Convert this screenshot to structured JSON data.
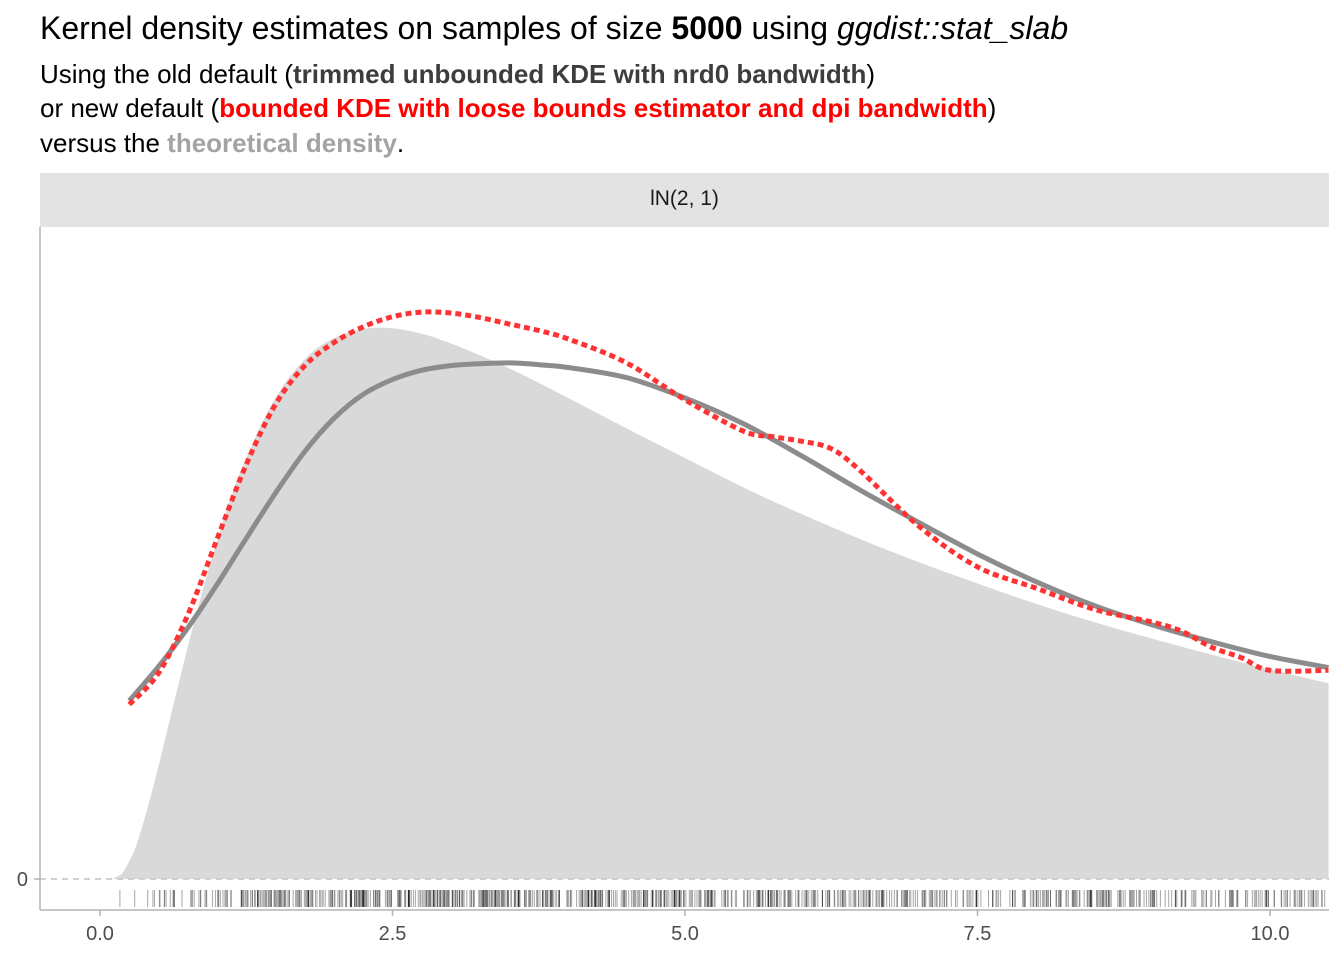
{
  "header": {
    "title_pre": "Kernel density estimates on samples of size ",
    "title_n": "5000",
    "title_mid": " using ",
    "title_fn": "ggdist::stat_slab",
    "sub1_pre": "Using the old default (",
    "sub1_hl": "trimmed unbounded KDE with nrd0 bandwidth",
    "sub1_post": ")",
    "sub2_pre": "or new default (",
    "sub2_hl": "bounded KDE with loose bounds estimator and dpi bandwidth",
    "sub2_post": ")",
    "sub3_pre": "versus the ",
    "sub3_hl": "theoretical density",
    "sub3_post": "."
  },
  "chart_data": {
    "type": "area",
    "facet_label": "lN(2, 1)",
    "xlim": [
      -0.25,
      10.5
    ],
    "ylim": [
      -0.0036,
      0.0745
    ],
    "x_ticks": [
      0.0,
      2.5,
      5.0,
      7.5,
      10.0
    ],
    "x_tick_labels": [
      "0.0",
      "2.5",
      "5.0",
      "7.5",
      "10.0"
    ],
    "y_ticks": [
      0
    ],
    "y_tick_labels": [
      "0"
    ],
    "grid": false,
    "colors": {
      "theoretical": "#d9d9d9",
      "old_default": "#8c8c8c",
      "new_default": "#ff3333",
      "strip": "#e3e3e3",
      "rug": "#000000"
    },
    "series": [
      {
        "key": "theoretical",
        "style": "filled-area",
        "x": [
          0.05,
          0.1,
          0.15,
          0.2,
          0.3,
          0.4,
          0.5,
          0.6,
          0.8,
          1.0,
          1.2,
          1.5,
          1.8,
          2.1,
          2.4,
          2.7,
          3.0,
          3.5,
          4.0,
          4.5,
          5.0,
          5.5,
          6.0,
          6.5,
          7.0,
          7.5,
          8.0,
          8.5,
          9.0,
          9.5,
          10.0,
          10.5
        ],
        "y": [
          0.0,
          0.0,
          0.0003,
          0.0008,
          0.0033,
          0.0074,
          0.0122,
          0.0174,
          0.0276,
          0.0366,
          0.0441,
          0.0521,
          0.0569,
          0.0591,
          0.0597,
          0.0592,
          0.058,
          0.0553,
          0.0521,
          0.0488,
          0.0456,
          0.0424,
          0.0395,
          0.0368,
          0.0343,
          0.032,
          0.0298,
          0.0278,
          0.026,
          0.0243,
          0.0227,
          0.0212
        ]
      },
      {
        "key": "old_default",
        "style": "solid-line",
        "x": [
          0.25,
          0.5,
          0.75,
          1.0,
          1.25,
          1.5,
          1.75,
          2.0,
          2.25,
          2.5,
          2.75,
          3.0,
          3.25,
          3.5,
          3.75,
          4.0,
          4.5,
          5.0,
          5.5,
          6.0,
          6.5,
          7.0,
          7.5,
          8.0,
          8.5,
          9.0,
          9.5,
          10.0,
          10.5
        ],
        "y": [
          0.0193,
          0.023,
          0.0272,
          0.0319,
          0.0369,
          0.0418,
          0.0463,
          0.0499,
          0.0525,
          0.0541,
          0.0551,
          0.0556,
          0.0558,
          0.0559,
          0.0557,
          0.0554,
          0.0543,
          0.0521,
          0.0493,
          0.0458,
          0.0421,
          0.0386,
          0.0352,
          0.0322,
          0.0296,
          0.0275,
          0.0257,
          0.0241,
          0.0229
        ]
      },
      {
        "key": "new_default",
        "style": "dotted-line",
        "x": [
          0.25,
          0.5,
          0.75,
          1.0,
          1.25,
          1.5,
          1.75,
          2.0,
          2.25,
          2.5,
          2.75,
          3.0,
          3.25,
          3.5,
          3.75,
          4.0,
          4.5,
          5.0,
          5.5,
          5.75,
          6.0,
          6.25,
          6.5,
          7.0,
          7.5,
          8.0,
          8.5,
          9.0,
          9.25,
          9.5,
          9.75,
          10.0,
          10.5
        ],
        "y": [
          0.0189,
          0.0223,
          0.0286,
          0.0368,
          0.0449,
          0.0514,
          0.0556,
          0.0581,
          0.0598,
          0.0609,
          0.0614,
          0.0613,
          0.0608,
          0.0601,
          0.0594,
          0.0585,
          0.0559,
          0.0519,
          0.0485,
          0.0479,
          0.0474,
          0.0466,
          0.0442,
          0.0382,
          0.0338,
          0.0315,
          0.0292,
          0.0278,
          0.0268,
          0.0251,
          0.024,
          0.0226,
          0.0226
        ]
      }
    ],
    "rug": {
      "description": "sample points",
      "x_range": [
        0.13,
        10.5
      ],
      "approx_count": 5000
    }
  }
}
